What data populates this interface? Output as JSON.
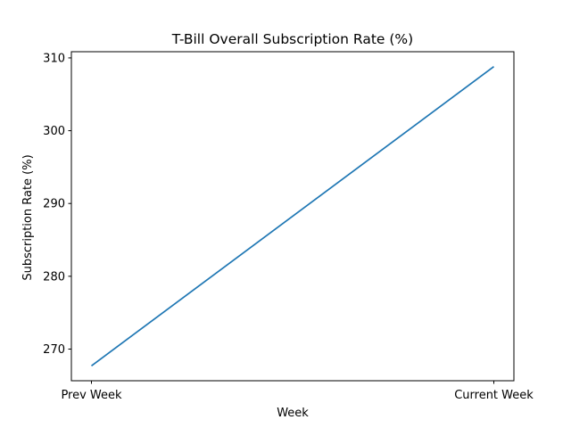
{
  "chart_data": {
    "type": "line",
    "title": "T-Bill Overall Subscription Rate (%)",
    "xlabel": "Week",
    "ylabel": "Subscription Rate (%)",
    "categories": [
      "Prev Week",
      "Current Week"
    ],
    "series": [
      {
        "values": [
          267.7,
          308.8
        ],
        "color": "#1f77b4"
      }
    ],
    "ylim": [
      265.65,
      310.85
    ],
    "yticks": [
      270,
      280,
      290,
      300,
      310
    ],
    "grid": false,
    "legend": "none"
  }
}
